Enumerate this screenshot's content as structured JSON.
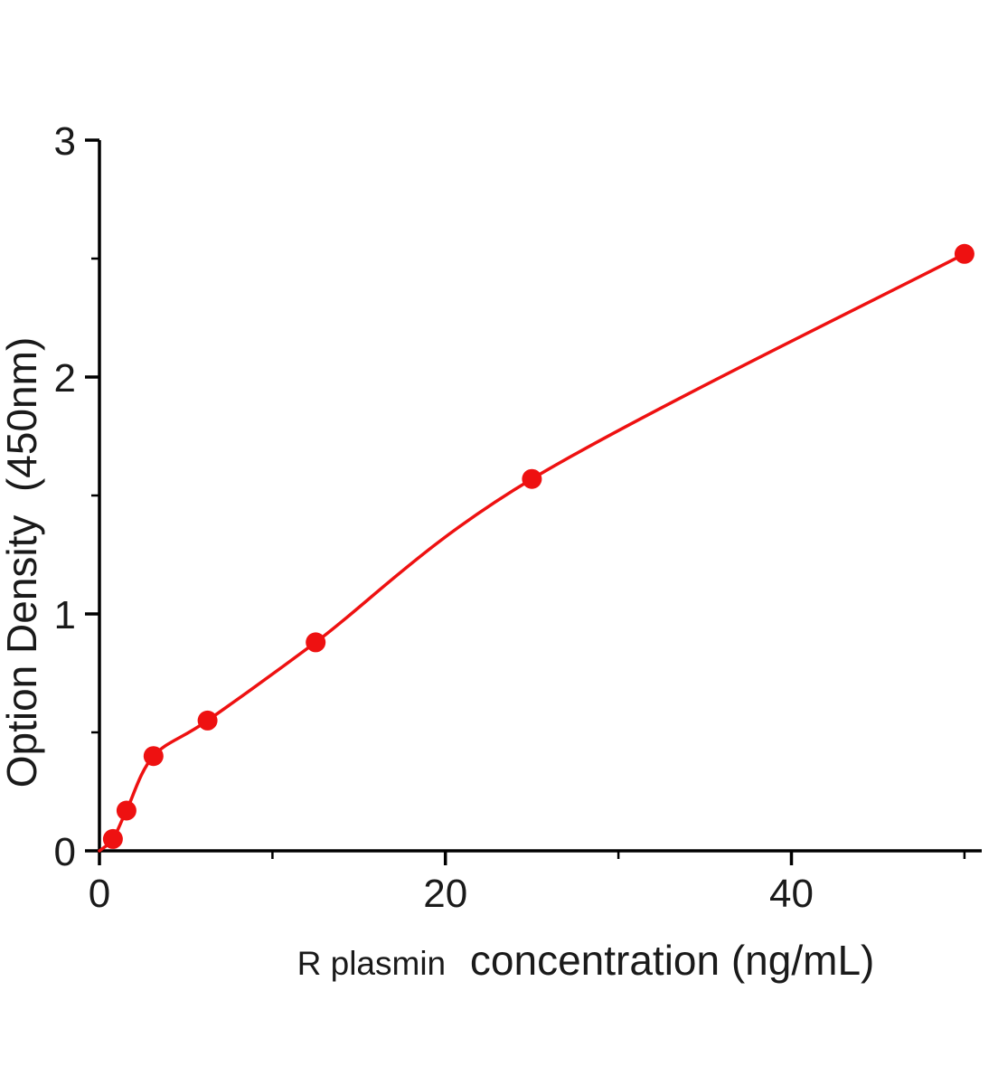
{
  "chart_data": {
    "type": "scatter",
    "title": "",
    "ylabel": "Option Density  (450nm)",
    "xlabel_prefix": "R plasmin",
    "xlabel_main": "concentration (ng/mL)",
    "x": [
      0.78,
      1.56,
      3.125,
      6.25,
      12.5,
      25,
      50
    ],
    "y": [
      0.05,
      0.17,
      0.4,
      0.55,
      0.88,
      1.57,
      2.52
    ],
    "curve_start": [
      0,
      0
    ],
    "curve_type": "smooth fit through points",
    "xlim": [
      0,
      51
    ],
    "ylim": [
      0,
      3
    ],
    "xticks": [
      0,
      20,
      40
    ],
    "xticks_minor": [
      10,
      30,
      50
    ],
    "yticks": [
      0,
      1,
      2,
      3
    ],
    "yticks_minor": [
      0.5,
      1.5,
      2.5
    ],
    "grid": false,
    "legend_position": "none",
    "colors": {
      "series": "#ee1111",
      "axis": "#000000",
      "text": "#1a1a1a",
      "background": "#ffffff"
    }
  }
}
